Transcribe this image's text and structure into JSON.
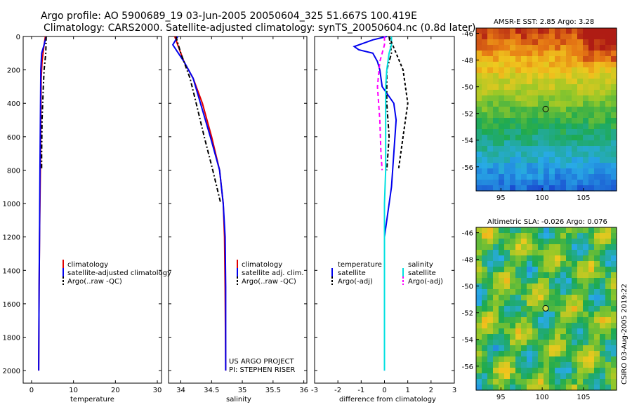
{
  "header": {
    "line1": "Argo profile: AO 5900689_19 03-Jun-2005 20050604_325 51.667S 100.419E",
    "line2": "Climatology: CARS2000. Satellite-adjusted climatology: synTS_20050604.nc (0.8d later)"
  },
  "colors": {
    "red": "#e00000",
    "blue": "#0000ee",
    "black": "#000000",
    "cyan": "#00e0e0",
    "magenta": "#ff00ff"
  },
  "chart_data": [
    {
      "type": "line",
      "name": "temperature-profile",
      "xlabel": "temperature",
      "xlim": [
        -2,
        31
      ],
      "xticks": [
        0,
        10,
        20,
        30
      ],
      "ylim": [
        2075,
        0
      ],
      "yticks": [
        0,
        200,
        400,
        600,
        800,
        1000,
        1200,
        1400,
        1600,
        1800,
        2000
      ],
      "series": [
        {
          "name": "climatology",
          "color": "red",
          "dash": "",
          "points": [
            [
              3.3,
              0
            ],
            [
              3.0,
              50
            ],
            [
              2.5,
              150
            ],
            [
              2.3,
              250
            ],
            [
              2.2,
              500
            ],
            [
              2.1,
              800
            ],
            [
              2.0,
              1000
            ],
            [
              1.9,
              1200
            ],
            [
              1.8,
              1500
            ],
            [
              1.7,
              2000
            ]
          ]
        },
        {
          "name": "satellite-adjusted climatology",
          "color": "blue",
          "dash": "",
          "points": [
            [
              3.5,
              0
            ],
            [
              3.0,
              50
            ],
            [
              2.4,
              100
            ],
            [
              2.2,
              200
            ],
            [
              2.1,
              500
            ],
            [
              2.0,
              800
            ],
            [
              1.9,
              1200
            ],
            [
              1.8,
              1500
            ],
            [
              1.7,
              2000
            ]
          ]
        },
        {
          "name": "Argo(..raw -QC)",
          "color": "black",
          "dash": "6,3,2,3",
          "points": [
            [
              3.5,
              0
            ],
            [
              3.4,
              100
            ],
            [
              3.0,
              200
            ],
            [
              2.8,
              300
            ],
            [
              2.5,
              500
            ],
            [
              2.4,
              700
            ],
            [
              2.4,
              800
            ]
          ]
        }
      ],
      "legend": [
        "climatology",
        "satellite-adjusted climatology",
        "Argo(..raw -QC)"
      ]
    },
    {
      "type": "line",
      "name": "salinity-profile",
      "xlabel": "salinity",
      "xlim": [
        33.8,
        36.05
      ],
      "xticks": [
        34,
        34.5,
        35,
        35.5,
        36
      ],
      "ylim": [
        2075,
        0
      ],
      "series": [
        {
          "name": "climatology",
          "color": "red",
          "dash": "",
          "points": [
            [
              33.9,
              0
            ],
            [
              33.95,
              50
            ],
            [
              34.05,
              150
            ],
            [
              34.2,
              250
            ],
            [
              34.35,
              400
            ],
            [
              34.5,
              600
            ],
            [
              34.63,
              800
            ],
            [
              34.69,
              1000
            ],
            [
              34.71,
              1200
            ],
            [
              34.72,
              1500
            ],
            [
              34.73,
              2000
            ]
          ]
        },
        {
          "name": "satellite adj. clim.",
          "color": "blue",
          "dash": "",
          "points": [
            [
              33.95,
              0
            ],
            [
              33.87,
              50
            ],
            [
              34.05,
              150
            ],
            [
              34.2,
              250
            ],
            [
              34.32,
              400
            ],
            [
              34.48,
              600
            ],
            [
              34.63,
              800
            ],
            [
              34.69,
              1000
            ],
            [
              34.72,
              1200
            ],
            [
              34.73,
              1500
            ],
            [
              34.73,
              2000
            ]
          ]
        },
        {
          "name": "Argo(..raw -QC)",
          "color": "black",
          "dash": "6,3,2,3",
          "points": [
            [
              33.92,
              0
            ],
            [
              34.0,
              100
            ],
            [
              34.15,
              250
            ],
            [
              34.25,
              400
            ],
            [
              34.38,
              600
            ],
            [
              34.52,
              800
            ],
            [
              34.65,
              1000
            ]
          ]
        }
      ],
      "legend": [
        "climatology",
        "satellite adj. clim.",
        "Argo(..raw -QC)"
      ],
      "annotations": [
        "US ARGO PROJECT",
        "PI: STEPHEN RISER"
      ]
    },
    {
      "type": "line",
      "name": "difference-profile",
      "xlabel": "difference from climatology",
      "xlim": [
        -3,
        3
      ],
      "xticks": [
        -3,
        -2,
        -1,
        0,
        1,
        2,
        3
      ],
      "ylim": [
        2075,
        0
      ],
      "series": [
        {
          "name": "temperature satellite",
          "color": "blue",
          "dash": "",
          "points": [
            [
              0.1,
              0
            ],
            [
              -0.5,
              20
            ],
            [
              -1.3,
              60
            ],
            [
              -1.1,
              80
            ],
            [
              -0.5,
              100
            ],
            [
              -0.3,
              150
            ],
            [
              -0.2,
              200
            ],
            [
              -0.1,
              300
            ],
            [
              0.4,
              400
            ],
            [
              0.5,
              500
            ],
            [
              0.4,
              700
            ],
            [
              0.3,
              900
            ],
            [
              0.1,
              1100
            ],
            [
              0,
              1200
            ],
            [
              0,
              2000
            ]
          ]
        },
        {
          "name": "Argo(-adj) temperature",
          "color": "black",
          "dash": "6,3,2,3",
          "points": [
            [
              0.2,
              0
            ],
            [
              0.3,
              100
            ],
            [
              0.1,
              200
            ],
            [
              0.1,
              400
            ],
            [
              0.2,
              600
            ],
            [
              0.1,
              800
            ]
          ]
        },
        {
          "name": "salinity satellite",
          "color": "cyan",
          "dash": "",
          "points": [
            [
              0.3,
              0
            ],
            [
              0.3,
              50
            ],
            [
              0.2,
              100
            ],
            [
              0.1,
              200
            ],
            [
              0.05,
              300
            ],
            [
              0.05,
              500
            ],
            [
              0.05,
              800
            ],
            [
              0.0,
              1000
            ],
            [
              0,
              2000
            ]
          ]
        },
        {
          "name": "Argo(-adj) salinity",
          "color": "magenta",
          "dash": "6,4",
          "points": [
            [
              0,
              0
            ],
            [
              0,
              50
            ],
            [
              -0.2,
              150
            ],
            [
              -0.3,
              300
            ],
            [
              -0.2,
              500
            ],
            [
              -0.15,
              700
            ],
            [
              -0.1,
              800
            ]
          ]
        },
        {
          "name": "temperature Argo(-adj)",
          "color": "black",
          "dash": "4,3",
          "points": [
            [
              0.2,
              0
            ],
            [
              0.5,
              100
            ],
            [
              0.8,
              200
            ],
            [
              1.0,
              400
            ],
            [
              0.8,
              600
            ],
            [
              0.6,
              800
            ]
          ]
        }
      ],
      "legend_left": [
        "temperature",
        "satellite",
        "Argo(-adj)"
      ],
      "legend_right": [
        "salinity",
        "satellite",
        "Argo(-adj)"
      ]
    },
    {
      "type": "heatmap",
      "name": "sst-map",
      "title": "AMSR-E SST: 2.85 Argo: 3.28",
      "xlim": [
        92,
        109
      ],
      "ylim": [
        -57.8,
        -45.6
      ],
      "xticks": [
        95,
        100,
        105
      ],
      "yticks": [
        -46,
        -48,
        -50,
        -52,
        -54,
        -56
      ],
      "marker": {
        "lon": 100.419,
        "lat": -51.667
      }
    },
    {
      "type": "heatmap",
      "name": "sla-map",
      "title": "Altimetric SLA: -0.026 Argo: 0.076",
      "xlim": [
        92,
        109
      ],
      "ylim": [
        -57.8,
        -45.6
      ],
      "xticks": [
        95,
        100,
        105
      ],
      "yticks": [
        -46,
        -48,
        -50,
        -52,
        -54,
        -56
      ],
      "marker": {
        "lon": 100.419,
        "lat": -51.667
      }
    }
  ],
  "footer": {
    "credit": "CSIRO 03-Aug-2005 2019:22"
  }
}
